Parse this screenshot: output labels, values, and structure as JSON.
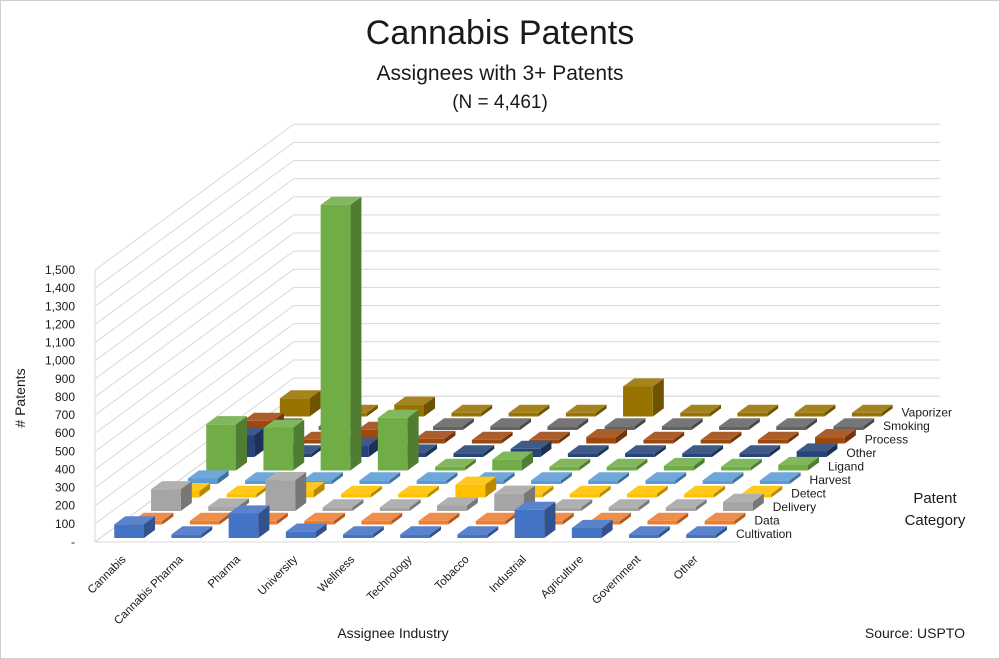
{
  "chart_data": {
    "type": "bar",
    "subtype": "3d-column",
    "title": "Cannabis Patents",
    "subtitle": "Assignees with 3+ Patents",
    "n_label": "(N = 4,461)",
    "xlabel": "Assignee Industry",
    "ylabel": "# Patents",
    "zlabel_line1": "Patent",
    "zlabel_line2": "Category",
    "source": "Source: USPTO",
    "ylim": [
      0,
      1500
    ],
    "y_ticks": [
      "-",
      "100",
      "200",
      "300",
      "400",
      "500",
      "600",
      "700",
      "800",
      "900",
      "1,000",
      "1,100",
      "1,200",
      "1,300",
      "1,400",
      "1,500"
    ],
    "categories": [
      "Cannabis",
      "Cannabis Pharma",
      "Pharma",
      "University",
      "Wellness",
      "Technology",
      "Tobacco",
      "Industrial",
      "Agriculture",
      "Government",
      "Other"
    ],
    "series": [
      {
        "name": "Cultivation",
        "color": "#4472c4",
        "values": [
          75,
          5,
          135,
          35,
          5,
          5,
          5,
          155,
          55,
          5,
          15
        ]
      },
      {
        "name": "Data",
        "color": "#ed7d31",
        "values": [
          15,
          0,
          10,
          10,
          0,
          15,
          10,
          10,
          0,
          0,
          5
        ]
      },
      {
        "name": "Delivery",
        "color": "#a5a5a5",
        "values": [
          120,
          25,
          170,
          20,
          15,
          30,
          95,
          5,
          10,
          0,
          50
        ]
      },
      {
        "name": "Detect",
        "color": "#ffc000",
        "values": [
          35,
          15,
          40,
          20,
          10,
          70,
          10,
          20,
          10,
          10,
          10
        ]
      },
      {
        "name": "Harvest",
        "color": "#5b9bd5",
        "values": [
          30,
          5,
          0,
          0,
          0,
          5,
          0,
          0,
          10,
          0,
          0
        ]
      },
      {
        "name": "Ligand",
        "color": "#70ad47",
        "values": [
          255,
          235,
          1465,
          290,
          10,
          60,
          20,
          20,
          25,
          20,
          30
        ]
      },
      {
        "name": "Other",
        "color": "#264478",
        "values": [
          120,
          15,
          65,
          25,
          10,
          45,
          15,
          15,
          10,
          10,
          30
        ]
      },
      {
        "name": "Process",
        "color": "#9e480e",
        "values": [
          125,
          10,
          75,
          25,
          20,
          15,
          35,
          15,
          15,
          15,
          35
        ]
      },
      {
        "name": "Smoking",
        "color": "#636363",
        "values": [
          5,
          0,
          5,
          0,
          10,
          10,
          10,
          10,
          10,
          0,
          15
        ]
      },
      {
        "name": "Vaporizer",
        "color": "#997300",
        "values": [
          100,
          0,
          65,
          10,
          15,
          10,
          165,
          10,
          10,
          0,
          20
        ]
      }
    ]
  }
}
